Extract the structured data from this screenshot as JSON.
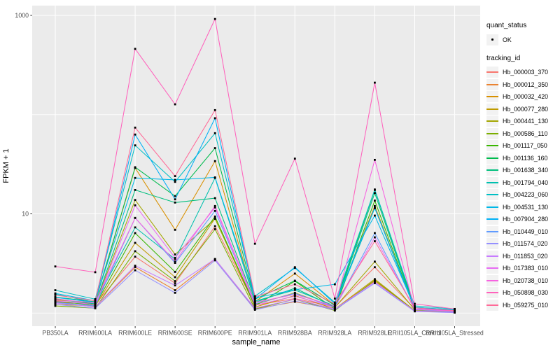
{
  "figure": {
    "x_axis_title": "sample_name",
    "y_axis_title": "FPKM + 1"
  },
  "legend": {
    "quant_status_title": "quant_status",
    "quant_status_items": [
      {
        "label": "OK",
        "marker": "point"
      }
    ],
    "tracking_id_title": "tracking_id"
  },
  "colors": {
    "panel_background": "#EBEBEB",
    "grid_line": "#FFFFFF",
    "legend_key_background": "#F2F2F2",
    "axis_tick_text": "#4D4D4D",
    "axis_tick_mark": "#333333",
    "point": "#000000"
  },
  "chart_data": {
    "type": "line",
    "title": "",
    "xlabel": "sample_name",
    "ylabel": "FPKM + 1",
    "y_scale": "log10",
    "ylim": [
      0.75,
      1100
    ],
    "y_major_ticks": [
      10,
      1000
    ],
    "y_minor_gridlines": [
      1,
      100
    ],
    "grid": true,
    "legend_position": "right",
    "point_marker": {
      "shape": "square",
      "color": "#000000",
      "legend_label": "OK"
    },
    "categories": [
      "PB350LA",
      "RRIM600LA",
      "RRIM600LE",
      "RRIM600SE",
      "RRIM600PE",
      "RRIM901LA",
      "RRIM928BA",
      "RRIM928LA",
      "RRIM928LE",
      "RRII105LA_Control",
      "RRII105LA_Stressed"
    ],
    "series": [
      {
        "name": "Hb_000003_370",
        "color": "#F8766D",
        "values": [
          1.4,
          1.22,
          3.7,
          2.0,
          7.5,
          1.2,
          1.4,
          1.15,
          2.9,
          1.1,
          1.05
        ]
      },
      {
        "name": "Hb_000012_350",
        "color": "#EA8331",
        "values": [
          1.3,
          1.15,
          2.9,
          1.7,
          3.5,
          1.1,
          1.3,
          1.1,
          2.1,
          1.05,
          1.04
        ]
      },
      {
        "name": "Hb_000032_420",
        "color": "#D89000",
        "values": [
          1.35,
          1.28,
          29,
          6.9,
          34,
          1.3,
          2.5,
          1.2,
          12.0,
          1.1,
          1.06
        ]
      },
      {
        "name": "Hb_000077_280",
        "color": "#C09B00",
        "values": [
          1.22,
          1.18,
          5.1,
          2.3,
          9.0,
          1.15,
          1.5,
          1.1,
          2.2,
          1.06,
          1.03
        ]
      },
      {
        "name": "Hb_000441_130",
        "color": "#A3A500",
        "values": [
          1.28,
          1.24,
          13.8,
          3.9,
          8.9,
          1.22,
          1.6,
          1.14,
          3.3,
          1.08,
          1.05
        ]
      },
      {
        "name": "Hb_000586_110",
        "color": "#7CAE00",
        "values": [
          1.18,
          1.12,
          4.2,
          2.1,
          7.0,
          1.1,
          1.38,
          1.06,
          2.15,
          1.05,
          1.02
        ]
      },
      {
        "name": "Hb_001117_050",
        "color": "#39B600",
        "values": [
          1.32,
          1.2,
          6.4,
          2.6,
          9.4,
          1.18,
          2.1,
          1.1,
          13.6,
          1.09,
          1.05
        ]
      },
      {
        "name": "Hb_001136_160",
        "color": "#00BB4E",
        "values": [
          1.45,
          1.3,
          29.5,
          15.1,
          46,
          1.38,
          2.12,
          1.2,
          17.4,
          1.14,
          1.08
        ]
      },
      {
        "name": "Hb_001638_340",
        "color": "#00BF7D",
        "values": [
          1.38,
          1.24,
          17.4,
          13.0,
          14.4,
          1.28,
          1.78,
          1.15,
          16.2,
          1.1,
          1.05
        ]
      },
      {
        "name": "Hb_001794_040",
        "color": "#00C0AF",
        "values": [
          1.55,
          1.28,
          7.3,
          3.5,
          23.0,
          1.32,
          1.71,
          1.18,
          11.4,
          1.1,
          1.06
        ]
      },
      {
        "name": "Hb_004223_060",
        "color": "#00BFC4",
        "values": [
          1.7,
          1.38,
          49,
          21,
          65,
          1.48,
          2.85,
          1.28,
          17.6,
          1.18,
          1.1
        ]
      },
      {
        "name": "Hb_004531_130",
        "color": "#00B8E7",
        "values": [
          1.58,
          1.33,
          23,
          22,
          23.3,
          1.42,
          1.72,
          1.95,
          9.6,
          1.14,
          1.08
        ]
      },
      {
        "name": "Hb_007904_280",
        "color": "#00B0F6",
        "values": [
          1.44,
          1.28,
          63,
          14,
          92,
          1.38,
          2.9,
          1.24,
          11.5,
          1.13,
          1.06
        ]
      },
      {
        "name": "Hb_010449_010",
        "color": "#619CFF",
        "values": [
          1.28,
          1.18,
          9.1,
          3.2,
          10.7,
          1.24,
          1.58,
          1.14,
          6.4,
          1.08,
          1.04
        ]
      },
      {
        "name": "Hb_011574_020",
        "color": "#9590FF",
        "values": [
          1.22,
          1.12,
          2.7,
          1.6,
          3.4,
          1.08,
          1.32,
          1.08,
          2.0,
          1.04,
          1.01
        ]
      },
      {
        "name": "Hb_011853_020",
        "color": "#C77CFF",
        "values": [
          1.26,
          1.16,
          3.0,
          1.9,
          3.5,
          1.12,
          1.38,
          1.1,
          2.05,
          1.05,
          1.02
        ]
      },
      {
        "name": "Hb_017383_010",
        "color": "#E76BF3",
        "values": [
          1.33,
          1.22,
          12.2,
          3.6,
          11.6,
          1.2,
          1.48,
          1.14,
          5.8,
          1.09,
          1.05
        ]
      },
      {
        "name": "Hb_020738_010",
        "color": "#F763E0",
        "values": [
          1.37,
          1.27,
          9.1,
          3.3,
          12.0,
          1.28,
          1.54,
          1.18,
          35,
          1.1,
          1.05
        ]
      },
      {
        "name": "Hb_050898_030",
        "color": "#FF62BC",
        "values": [
          2.95,
          2.58,
          460,
          127,
          920,
          5.0,
          36,
          1.4,
          210,
          1.24,
          1.1
        ]
      },
      {
        "name": "Hb_059275_010",
        "color": "#FF6A98",
        "values": [
          1.52,
          1.33,
          74,
          24,
          111,
          1.46,
          1.95,
          1.24,
          5.3,
          1.13,
          1.06
        ]
      }
    ]
  }
}
